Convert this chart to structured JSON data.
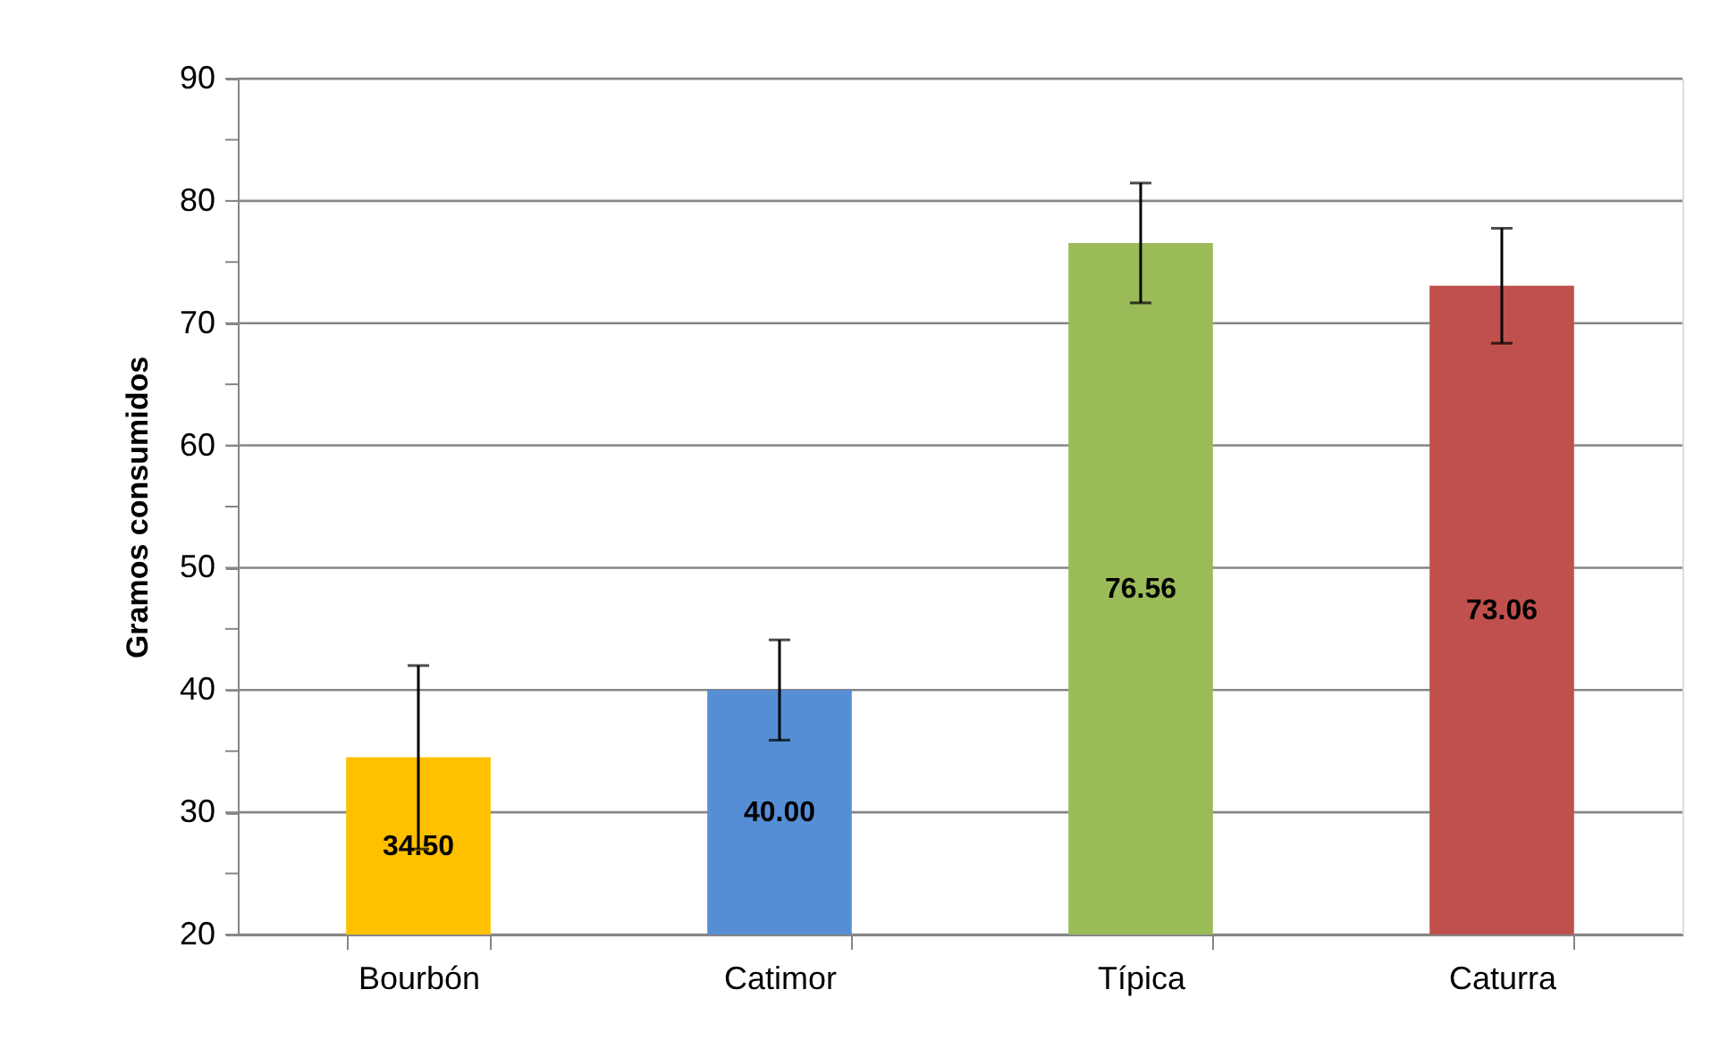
{
  "chart_data": {
    "type": "bar",
    "ylabel": "Gramos  consumidos",
    "categories": [
      "Bourbón",
      "Catimor",
      "Típica",
      "Caturra"
    ],
    "values": [
      34.5,
      40.0,
      76.56,
      73.06
    ],
    "colors": [
      "#ffc000",
      "#558ed5",
      "#9bbb59",
      "#c0504d"
    ],
    "errors": [
      7.5,
      4.1,
      4.9,
      4.7
    ],
    "value_labels": [
      "34.50",
      "40.00",
      "76.56",
      "73.06"
    ],
    "ylim": [
      20,
      90
    ],
    "yticks": [
      20,
      {
        "value": 25,
        "label": null
      },
      30,
      {
        "value": 35,
        "label": null
      },
      40,
      {
        "value": 45,
        "label": null
      },
      50,
      {
        "value": 55,
        "label": null
      },
      60,
      {
        "value": 65,
        "label": null
      },
      70,
      {
        "value": 75,
        "label": null
      },
      80,
      {
        "value": 85,
        "label": null
      },
      90
    ],
    "grid": "y",
    "legend": false
  }
}
